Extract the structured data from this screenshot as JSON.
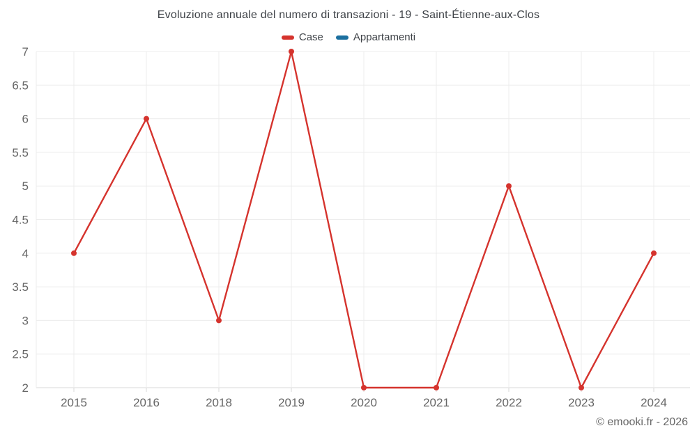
{
  "header": {
    "title": "Evoluzione annuale del numero di transazioni - 19 - Saint-Étienne-aux-Clos"
  },
  "legend": {
    "items": [
      {
        "label": "Case",
        "color": "#d5332d"
      },
      {
        "label": "Appartamenti",
        "color": "#1b6f9f"
      }
    ]
  },
  "footer": {
    "credit": "© emooki.fr - 2026"
  },
  "chart_data": {
    "type": "line",
    "title": "Evoluzione annuale del numero di transazioni - 19 - Saint-Étienne-aux-Clos",
    "x": [
      "2015",
      "2016",
      "2018",
      "2019",
      "2020",
      "2021",
      "2022",
      "2023",
      "2024"
    ],
    "series": [
      {
        "name": "Case",
        "color": "#d5332d",
        "values": [
          4,
          6,
          3,
          7,
          2,
          2,
          5,
          2,
          4
        ]
      },
      {
        "name": "Appartamenti",
        "color": "#1b6f9f",
        "values": []
      }
    ],
    "xlabel": "",
    "ylabel": "",
    "ylim": [
      2,
      7
    ],
    "ytick_step": 0.5,
    "grid": true,
    "legend_position": "top",
    "marker": "circle",
    "theme": {
      "grid_color": "#ececec",
      "axis_color": "#d9d9d9",
      "tick_text_color": "#666666",
      "title_text_color": "#3e4247",
      "background": "#ffffff"
    }
  }
}
